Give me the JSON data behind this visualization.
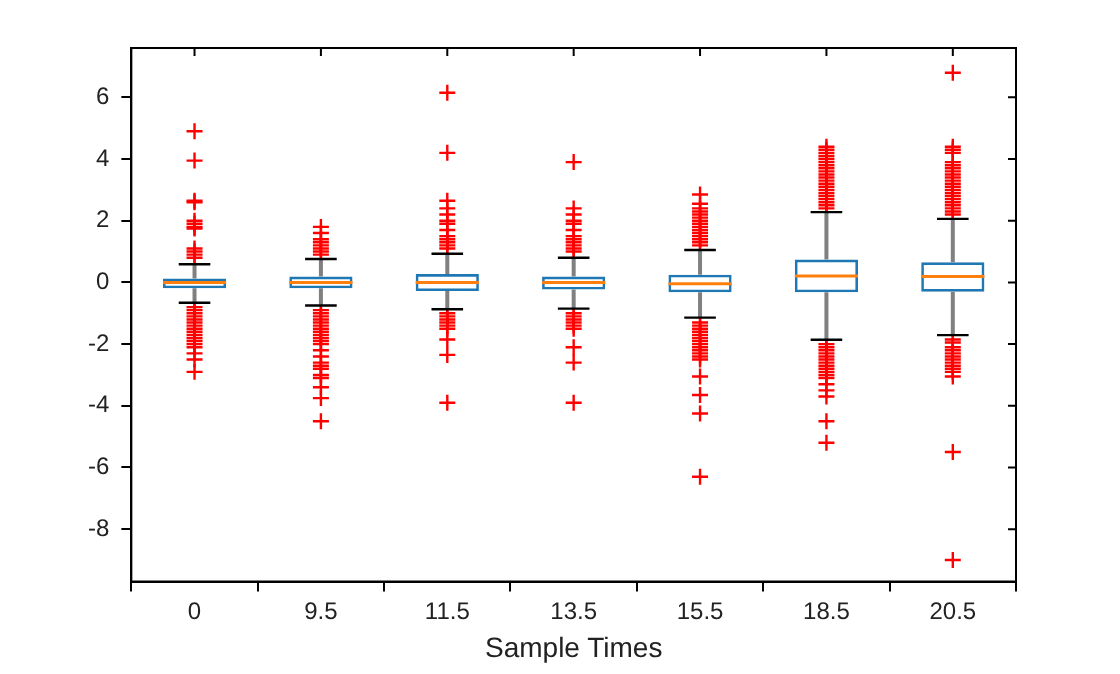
{
  "chart_data": {
    "type": "box",
    "xlabel": "Sample Times",
    "categories": [
      "0",
      "9.5",
      "11.5",
      "13.5",
      "15.5",
      "18.5",
      "20.5"
    ],
    "ylim": [
      -9.7,
      7.6
    ],
    "yticks": [
      -8,
      -6,
      -4,
      -2,
      0,
      2,
      4,
      6
    ],
    "grid": false,
    "legend": false,
    "marker": "cross",
    "series": [
      {
        "color": "#1f77b4",
        "boxes": [
          {
            "low": -0.66,
            "q1": -0.19,
            "median": 0.0,
            "q3": 0.13,
            "high": 0.59,
            "outliers": [
              4.9,
              3.95,
              2.65,
              2.6,
              2.0,
              1.9,
              1.8,
              1.75,
              1.1,
              1.0,
              0.9,
              0.8,
              -0.8,
              -0.9,
              -1.0,
              -1.1,
              -1.2,
              -1.3,
              -1.4,
              -1.5,
              -1.6,
              -1.7,
              -1.8,
              -1.9,
              -2.0,
              -2.1,
              -2.3,
              -2.5,
              -2.9
            ]
          },
          {
            "low": -0.75,
            "q1": -0.19,
            "median": 0.0,
            "q3": 0.19,
            "high": 0.76,
            "outliers": [
              1.8,
              1.6,
              1.4,
              1.3,
              1.2,
              1.1,
              1.0,
              0.9,
              -0.9,
              -1.0,
              -1.1,
              -1.2,
              -1.3,
              -1.4,
              -1.5,
              -1.6,
              -1.7,
              -1.8,
              -1.9,
              -2.0,
              -2.2,
              -2.4,
              -2.6,
              -2.7,
              -2.8,
              -3.0,
              -3.1,
              -3.4,
              -3.75,
              -4.5
            ]
          },
          {
            "low": -0.87,
            "q1": -0.28,
            "median": 0.0,
            "q3": 0.27,
            "high": 0.93,
            "outliers": [
              6.15,
              4.2,
              2.65,
              2.4,
              2.2,
              2.0,
              1.9,
              1.7,
              1.5,
              1.4,
              1.3,
              1.2,
              1.1,
              -1.0,
              -1.1,
              -1.2,
              -1.3,
              -1.4,
              -1.5,
              -1.85,
              -2.35,
              -3.9
            ]
          },
          {
            "low": -0.85,
            "q1": -0.23,
            "median": 0.0,
            "q3": 0.19,
            "high": 0.8,
            "outliers": [
              3.9,
              2.4,
              2.2,
              2.0,
              1.9,
              1.7,
              1.5,
              1.4,
              1.3,
              1.2,
              1.1,
              1.0,
              -1.0,
              -1.1,
              -1.2,
              -1.3,
              -1.4,
              -1.5,
              -2.1,
              -2.6,
              -3.9
            ]
          },
          {
            "low": -1.14,
            "q1": -0.32,
            "median": -0.04,
            "q3": 0.25,
            "high": 1.05,
            "outliers": [
              2.85,
              2.55,
              2.4,
              2.3,
              2.2,
              2.1,
              2.0,
              1.9,
              1.8,
              1.7,
              1.6,
              1.5,
              1.4,
              1.3,
              1.2,
              -1.3,
              -1.4,
              -1.5,
              -1.6,
              -1.7,
              -1.8,
              -1.9,
              -2.0,
              -2.1,
              -2.2,
              -2.3,
              -2.4,
              -2.5,
              -3.05,
              -3.65,
              -4.25,
              -6.3
            ]
          },
          {
            "low": -1.86,
            "q1": -0.32,
            "median": 0.21,
            "q3": 0.74,
            "high": 2.28,
            "outliers": [
              4.4,
              4.3,
              4.2,
              4.1,
              4.0,
              3.9,
              3.8,
              3.7,
              3.6,
              3.5,
              3.4,
              3.3,
              3.2,
              3.1,
              3.0,
              2.9,
              2.8,
              2.7,
              2.6,
              2.5,
              2.4,
              -2.0,
              -2.1,
              -2.2,
              -2.3,
              -2.4,
              -2.5,
              -2.6,
              -2.7,
              -2.8,
              -2.9,
              -3.0,
              -3.1,
              -3.3,
              -3.5,
              -3.7,
              -4.5,
              -5.2
            ]
          },
          {
            "low": -1.71,
            "q1": -0.3,
            "median": 0.19,
            "q3": 0.65,
            "high": 2.06,
            "outliers": [
              6.8,
              4.4,
              4.3,
              4.2,
              3.9,
              3.8,
              3.7,
              3.6,
              3.5,
              3.4,
              3.3,
              3.2,
              3.1,
              3.0,
              2.9,
              2.8,
              2.7,
              2.6,
              2.5,
              2.4,
              2.3,
              2.2,
              -1.85,
              -1.95,
              -2.1,
              -2.2,
              -2.3,
              -2.4,
              -2.5,
              -2.6,
              -2.7,
              -2.8,
              -2.9,
              -3.05,
              -5.5,
              -9.0
            ]
          }
        ]
      }
    ]
  }
}
